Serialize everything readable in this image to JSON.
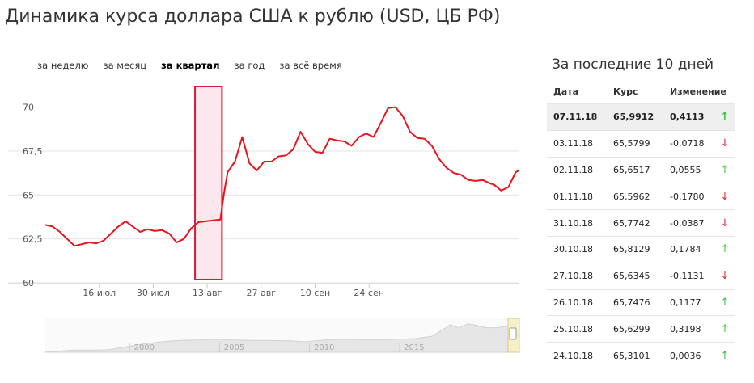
{
  "page": {
    "title": "Динамика курса доллара США к рублю (USD, ЦБ РФ)"
  },
  "tabs": [
    {
      "label": "за неделю",
      "active": false
    },
    {
      "label": "за месяц",
      "active": false
    },
    {
      "label": "за квартал",
      "active": true
    },
    {
      "label": "за год",
      "active": false
    },
    {
      "label": "за всё время",
      "active": false
    }
  ],
  "side_panel": {
    "title": "За последние 10 дней",
    "headers": {
      "date": "Дата",
      "rate": "Курс",
      "change": "Изменение"
    },
    "rows": [
      {
        "date": "07.11.18",
        "rate": "65,9912",
        "change": "0,4113",
        "dir": "up",
        "highlight": true
      },
      {
        "date": "03.11.18",
        "rate": "65,5799",
        "change": "-0,0718",
        "dir": "down",
        "highlight": false
      },
      {
        "date": "02.11.18",
        "rate": "65,6517",
        "change": "0,0555",
        "dir": "up",
        "highlight": false
      },
      {
        "date": "01.11.18",
        "rate": "65,5962",
        "change": "-0,1780",
        "dir": "down",
        "highlight": false
      },
      {
        "date": "31.10.18",
        "rate": "65,7742",
        "change": "-0,0387",
        "dir": "down",
        "highlight": false
      },
      {
        "date": "30.10.18",
        "rate": "65,8129",
        "change": "0,1784",
        "dir": "up",
        "highlight": false
      },
      {
        "date": "27.10.18",
        "rate": "65,6345",
        "change": "-0,1131",
        "dir": "down",
        "highlight": false
      },
      {
        "date": "26.10.18",
        "rate": "65,7476",
        "change": "0,1177",
        "dir": "up",
        "highlight": false
      },
      {
        "date": "25.10.18",
        "rate": "65,6299",
        "change": "0,3198",
        "dir": "up",
        "highlight": false
      },
      {
        "date": "24.10.18",
        "rate": "65,3101",
        "change": "0,0036",
        "dir": "up",
        "highlight": false
      }
    ]
  },
  "colors": {
    "line": "#e8141e",
    "highlight_fill": "#fbe7ec",
    "highlight_border": "#d81b3c",
    "grid": "#e4e4e4",
    "up": "#3cbf3c",
    "down": "#e0262a"
  },
  "icons": {
    "up": "arrow-up-icon",
    "down": "arrow-down-icon"
  },
  "chart_data": {
    "type": "line",
    "title": "Динамика курса доллара США к рублю (USD, ЦБ РФ)",
    "ylim": [
      60,
      71.5
    ],
    "yticks": [
      60,
      62.5,
      65,
      67.5,
      70
    ],
    "ytick_labels": [
      "60",
      "62,5",
      "65",
      "67,5",
      "70"
    ],
    "xlim": [
      0,
      123
    ],
    "xticks": [
      {
        "x": 14,
        "label": "16 июл"
      },
      {
        "x": 28,
        "label": "30 июл"
      },
      {
        "x": 42,
        "label": "13 авг"
      },
      {
        "x": 56,
        "label": "27 авг"
      },
      {
        "x": 70,
        "label": "10 сен"
      },
      {
        "x": 84,
        "label": "24 сен"
      }
    ],
    "grid": true,
    "highlight_range": [
      38,
      45
    ],
    "series": [
      {
        "values": [
          [
            0,
            63.3
          ],
          [
            2,
            63.2
          ],
          [
            4,
            62.9
          ],
          [
            6,
            62.5
          ],
          [
            8,
            62.1
          ],
          [
            10,
            62.2
          ],
          [
            12,
            62.3
          ],
          [
            14,
            62.25
          ],
          [
            16,
            62.4
          ],
          [
            18,
            62.8
          ],
          [
            20,
            63.2
          ],
          [
            22,
            63.5
          ],
          [
            24,
            63.2
          ],
          [
            26,
            62.9
          ],
          [
            28,
            63.05
          ],
          [
            30,
            62.95
          ],
          [
            32,
            63.0
          ],
          [
            34,
            62.8
          ],
          [
            36,
            62.3
          ],
          [
            38,
            62.5
          ],
          [
            40,
            63.1
          ],
          [
            42,
            63.45
          ],
          [
            44,
            63.5
          ],
          [
            46,
            63.55
          ],
          [
            48,
            63.6
          ],
          [
            49,
            65.1
          ],
          [
            50,
            66.3
          ],
          [
            52,
            66.9
          ],
          [
            54,
            68.3
          ],
          [
            56,
            66.8
          ],
          [
            58,
            66.4
          ],
          [
            60,
            66.9
          ],
          [
            62,
            66.9
          ],
          [
            64,
            67.2
          ],
          [
            66,
            67.25
          ],
          [
            68,
            67.6
          ],
          [
            70,
            68.6
          ],
          [
            72,
            67.9
          ],
          [
            74,
            67.45
          ],
          [
            76,
            67.4
          ],
          [
            78,
            68.2
          ],
          [
            80,
            68.1
          ],
          [
            82,
            68.05
          ],
          [
            84,
            67.8
          ],
          [
            86,
            68.3
          ],
          [
            88,
            68.5
          ],
          [
            90,
            68.3
          ],
          [
            92,
            69.1
          ],
          [
            94,
            69.95
          ],
          [
            96,
            70.0
          ],
          [
            98,
            69.5
          ],
          [
            100,
            68.6
          ],
          [
            102,
            68.25
          ],
          [
            104,
            68.2
          ],
          [
            106,
            67.8
          ],
          [
            108,
            67.05
          ],
          [
            110,
            66.55
          ],
          [
            112,
            66.25
          ],
          [
            114,
            66.15
          ],
          [
            116,
            65.85
          ],
          [
            118,
            65.8
          ],
          [
            120,
            65.85
          ],
          [
            122,
            65.65
          ],
          [
            123,
            65.6
          ],
          [
            125,
            65.25
          ],
          [
            127,
            65.45
          ],
          [
            129,
            66.3
          ],
          [
            130,
            66.4
          ]
        ]
      }
    ]
  },
  "navigator": {
    "labels": [
      {
        "year": 1998,
        "label": "2000"
      },
      {
        "year": 2003,
        "label": "2005"
      },
      {
        "year": 2008,
        "label": "2010"
      },
      {
        "year": 2013,
        "label": "2015"
      }
    ],
    "values": [
      [
        1992.5,
        0.5
      ],
      [
        1993,
        2
      ],
      [
        1994,
        5
      ],
      [
        1995,
        5
      ],
      [
        1996,
        6
      ],
      [
        1998,
        20
      ],
      [
        1999,
        25
      ],
      [
        2000,
        28
      ],
      [
        2001,
        29
      ],
      [
        2002,
        31
      ],
      [
        2003,
        29
      ],
      [
        2004,
        28
      ],
      [
        2005,
        28
      ],
      [
        2006,
        27
      ],
      [
        2007,
        25
      ],
      [
        2008,
        29
      ],
      [
        2009,
        31
      ],
      [
        2010,
        30
      ],
      [
        2011,
        29
      ],
      [
        2012,
        31
      ],
      [
        2013,
        32
      ],
      [
        2014,
        38
      ],
      [
        2014.7,
        56
      ],
      [
        2015,
        65
      ],
      [
        2015.5,
        58
      ],
      [
        2016,
        67
      ],
      [
        2016.5,
        63
      ],
      [
        2017,
        58
      ],
      [
        2017.5,
        58
      ],
      [
        2018,
        60
      ],
      [
        2018.4,
        64
      ],
      [
        2018.85,
        66
      ]
    ],
    "ylim": [
      0,
      80
    ]
  }
}
